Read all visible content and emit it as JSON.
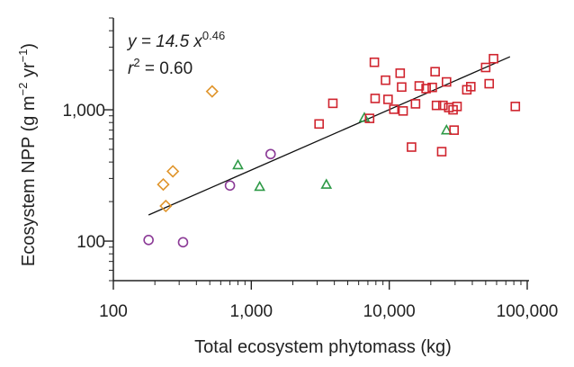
{
  "chart_data": {
    "type": "scatter",
    "x_scale": "log",
    "y_scale": "log",
    "xlim": [
      100,
      100000
    ],
    "ylim": [
      50,
      5000
    ],
    "xlabel": "Total ecosystem phytomass (kg)",
    "ylabel_main": "Ecosystem NPP (g m",
    "ylabel_exp1": "−2",
    "ylabel_mid": " yr",
    "ylabel_exp2": "−1",
    "ylabel_end": ")",
    "x_ticks": [
      {
        "value": 100,
        "label": "100"
      },
      {
        "value": 1000,
        "label": "1,000"
      },
      {
        "value": 10000,
        "label": "10,000"
      },
      {
        "value": 100000,
        "label": "100,000"
      }
    ],
    "y_ticks": [
      {
        "value": 100,
        "label": "100"
      },
      {
        "value": 1000,
        "label": "1,000"
      }
    ],
    "annotation": {
      "eq_prefix": "y = 14.5 x",
      "eq_exponent": "0.46",
      "r2_prefix": "r",
      "r2_exp": "2",
      "r2_value": " = 0.60"
    },
    "fit_line": {
      "a": 14.5,
      "b": 0.46,
      "x_start": 180,
      "x_end": 75000,
      "color": "#111111"
    },
    "series": [
      {
        "marker": "diamond",
        "color": "#e0952c",
        "points": [
          [
            230,
            270
          ],
          [
            270,
            340
          ],
          [
            240,
            185
          ],
          [
            520,
            1380
          ]
        ]
      },
      {
        "marker": "circle",
        "color": "#8b3a96",
        "points": [
          [
            180,
            102
          ],
          [
            320,
            98
          ],
          [
            700,
            265
          ],
          [
            1380,
            460
          ]
        ]
      },
      {
        "marker": "triangle",
        "color": "#2e9a47",
        "points": [
          [
            800,
            380
          ],
          [
            1150,
            260
          ],
          [
            3500,
            270
          ],
          [
            6600,
            870
          ],
          [
            26000,
            700
          ]
        ]
      },
      {
        "marker": "square",
        "color": "#d0242e",
        "points": [
          [
            3100,
            780
          ],
          [
            3900,
            1120
          ],
          [
            7200,
            860
          ],
          [
            7800,
            2300
          ],
          [
            7900,
            1220
          ],
          [
            9400,
            1680
          ],
          [
            9800,
            1200
          ],
          [
            10800,
            1010
          ],
          [
            12000,
            1900
          ],
          [
            12300,
            1490
          ],
          [
            12600,
            980
          ],
          [
            14500,
            520
          ],
          [
            15500,
            1110
          ],
          [
            16500,
            1520
          ],
          [
            18500,
            1450
          ],
          [
            20500,
            1480
          ],
          [
            21500,
            1950
          ],
          [
            22000,
            1080
          ],
          [
            24000,
            480
          ],
          [
            24500,
            1080
          ],
          [
            26000,
            1630
          ],
          [
            27000,
            1040
          ],
          [
            29000,
            1000
          ],
          [
            29500,
            700
          ],
          [
            31000,
            1060
          ],
          [
            36500,
            1420
          ],
          [
            39000,
            1500
          ],
          [
            50000,
            2100
          ],
          [
            53000,
            1580
          ],
          [
            57000,
            2450
          ],
          [
            82000,
            1060
          ]
        ]
      }
    ]
  }
}
